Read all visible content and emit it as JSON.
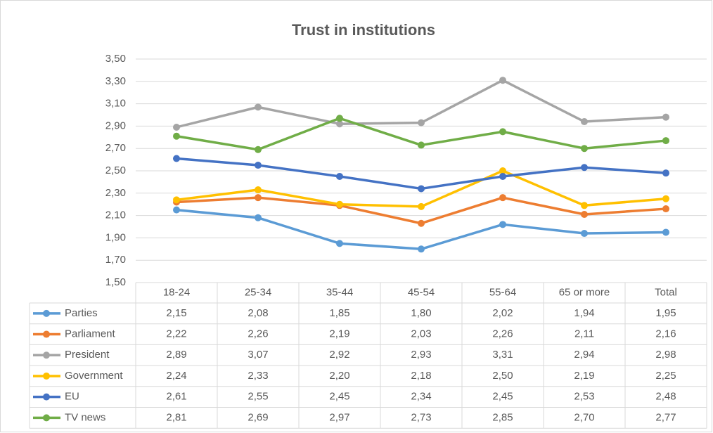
{
  "chart_data": {
    "type": "line",
    "title": "Trust in institutions",
    "categories": [
      "18-24",
      "25-34",
      "35-44",
      "45-54",
      "55-64",
      "65 or more",
      "Total"
    ],
    "ylim": [
      1.5,
      3.5
    ],
    "yticks": [
      {
        "value": 1.5,
        "label": "1,50"
      },
      {
        "value": 1.7,
        "label": "1,70"
      },
      {
        "value": 1.9,
        "label": "1,90"
      },
      {
        "value": 2.1,
        "label": "2,10"
      },
      {
        "value": 2.3,
        "label": "2,30"
      },
      {
        "value": 2.5,
        "label": "2,50"
      },
      {
        "value": 2.7,
        "label": "2,70"
      },
      {
        "value": 2.9,
        "label": "2,90"
      },
      {
        "value": 3.1,
        "label": "3,10"
      },
      {
        "value": 3.3,
        "label": "3,30"
      },
      {
        "value": 3.5,
        "label": "3,50"
      }
    ],
    "grid": true,
    "series": [
      {
        "name": "Parties",
        "color": "#5b9bd5",
        "values": [
          2.15,
          2.08,
          1.85,
          1.8,
          2.02,
          1.94,
          1.95
        ],
        "value_labels": [
          "2,15",
          "2,08",
          "1,85",
          "1,80",
          "2,02",
          "1,94",
          "1,95"
        ]
      },
      {
        "name": "Parliament",
        "color": "#ed7d31",
        "values": [
          2.22,
          2.26,
          2.19,
          2.03,
          2.26,
          2.11,
          2.16
        ],
        "value_labels": [
          "2,22",
          "2,26",
          "2,19",
          "2,03",
          "2,26",
          "2,11",
          "2,16"
        ]
      },
      {
        "name": "President",
        "color": "#a5a5a5",
        "values": [
          2.89,
          3.07,
          2.92,
          2.93,
          3.31,
          2.94,
          2.98
        ],
        "value_labels": [
          "2,89",
          "3,07",
          "2,92",
          "2,93",
          "3,31",
          "2,94",
          "2,98"
        ]
      },
      {
        "name": "Government",
        "color": "#ffc000",
        "values": [
          2.24,
          2.33,
          2.2,
          2.18,
          2.5,
          2.19,
          2.25
        ],
        "value_labels": [
          "2,24",
          "2,33",
          "2,20",
          "2,18",
          "2,50",
          "2,19",
          "2,25"
        ]
      },
      {
        "name": "EU",
        "color": "#4472c4",
        "values": [
          2.61,
          2.55,
          2.45,
          2.34,
          2.45,
          2.53,
          2.48
        ],
        "value_labels": [
          "2,61",
          "2,55",
          "2,45",
          "2,34",
          "2,45",
          "2,53",
          "2,48"
        ]
      },
      {
        "name": "TV news",
        "color": "#70ad47",
        "values": [
          2.81,
          2.69,
          2.97,
          2.73,
          2.85,
          2.7,
          2.77
        ],
        "value_labels": [
          "2,81",
          "2,69",
          "2,97",
          "2,73",
          "2,85",
          "2,70",
          "2,77"
        ]
      }
    ]
  }
}
